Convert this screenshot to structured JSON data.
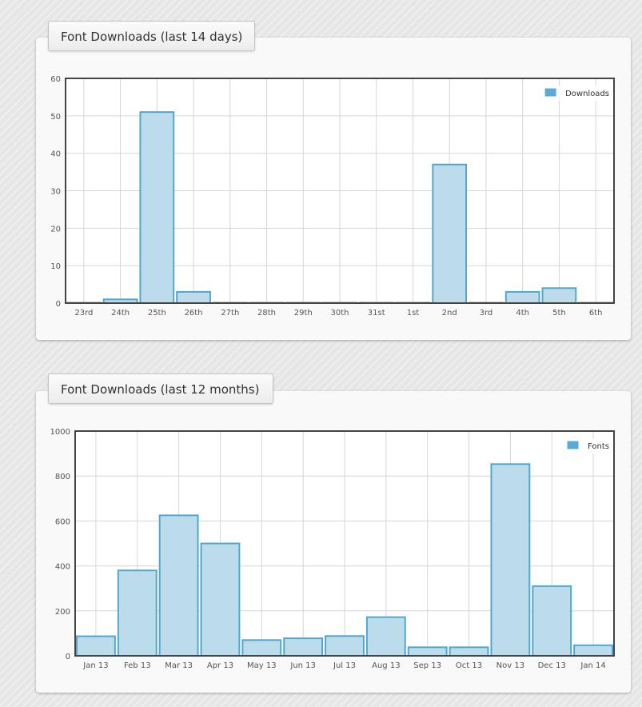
{
  "panels": [
    {
      "title": "Font Downloads (last 14 days)"
    },
    {
      "title": "Font Downloads (last 12 months)"
    }
  ],
  "colors": {
    "bar_fill": "#bcdcec",
    "bar_stroke": "#4fa8cf",
    "legend_swatch": "#5aaad6",
    "grid": "#d6d6d6",
    "axis_frame": "#444444"
  },
  "chart_data": [
    {
      "type": "bar",
      "title": "",
      "xlabel": "",
      "ylabel": "",
      "categories": [
        "23rd",
        "24th",
        "25th",
        "26th",
        "27th",
        "28th",
        "29th",
        "30th",
        "31st",
        "1st",
        "2nd",
        "3rd",
        "4th",
        "5th",
        "6th"
      ],
      "series": [
        {
          "name": "Downloads",
          "values": [
            0,
            1,
            51,
            3,
            0,
            0,
            0,
            0,
            0,
            0,
            37,
            0,
            3,
            4,
            0
          ]
        }
      ],
      "ylim": [
        0,
        60
      ],
      "yticks": [
        0,
        10,
        20,
        30,
        40,
        50,
        60
      ],
      "grid": true,
      "legend_position": "top-right"
    },
    {
      "type": "bar",
      "title": "",
      "xlabel": "",
      "ylabel": "",
      "categories": [
        "Jan 13",
        "Feb 13",
        "Mar 13",
        "Apr 13",
        "May 13",
        "Jun 13",
        "Jul 13",
        "Aug 13",
        "Sep 13",
        "Oct 13",
        "Nov 13",
        "Dec 13",
        "Jan 14"
      ],
      "series": [
        {
          "name": "Fonts",
          "values": [
            87,
            380,
            625,
            500,
            70,
            78,
            88,
            172,
            38,
            38,
            853,
            310,
            47
          ]
        }
      ],
      "ylim": [
        0,
        1000
      ],
      "yticks": [
        0,
        200,
        400,
        600,
        800,
        1000
      ],
      "grid": true,
      "legend_position": "top-right"
    }
  ]
}
